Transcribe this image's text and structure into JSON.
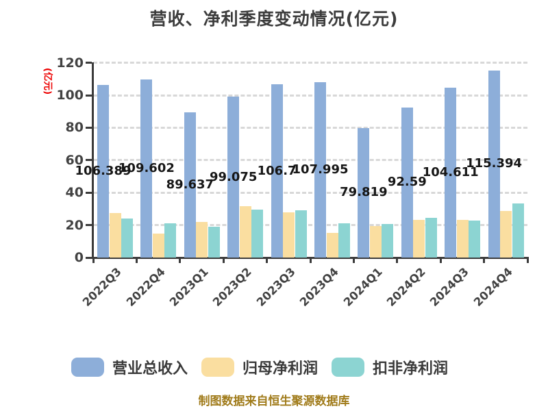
{
  "title": "营收、净利季度变动情况(亿元)",
  "y_axis_label": "(亿元)",
  "footer": "制图数据来自恒生聚源数据库",
  "colors": {
    "revenue_bar": "#8daed9",
    "net_profit_bar": "#fadea0",
    "deducted_profit_bar": "#8cd4d2",
    "title_text": "#3c3c3c",
    "axis": "#3b3b3b",
    "gridline": "#d8d8d8",
    "y_axis_label_text": "#ec0000",
    "value_label_text": "#161616",
    "footer_text": "#a07b1a"
  },
  "chart_data": {
    "type": "bar",
    "title": "营收、净利季度变动情况(亿元)",
    "ylabel": "(亿元)",
    "xlabel": "",
    "categories": [
      "2022Q3",
      "2022Q4",
      "2023Q1",
      "2023Q2",
      "2023Q3",
      "2023Q4",
      "2024Q1",
      "2024Q2",
      "2024Q3",
      "2024Q4"
    ],
    "series": [
      {
        "name": "营业总收入",
        "color": "#8daed9",
        "values": [
          106.389,
          109.602,
          89.637,
          99.075,
          106.7,
          107.995,
          79.819,
          92.59,
          104.611,
          115.394
        ],
        "value_labels": [
          "106.389",
          "109.602",
          "89.637",
          "99.075",
          "106.7",
          "107.995",
          "79.819",
          "92.59",
          "104.611",
          "115.394"
        ],
        "value_label_position": "center"
      },
      {
        "name": "归母净利润",
        "color": "#fadea0",
        "values": [
          27.5,
          14.6,
          21.8,
          31.6,
          27.9,
          15.4,
          19.6,
          23.3,
          23.3,
          28.9
        ]
      },
      {
        "name": "扣非净利润",
        "color": "#8cd4d2",
        "values": [
          24.1,
          21.3,
          19.1,
          29.5,
          29.2,
          21.1,
          20.8,
          24.5,
          22.9,
          33.4
        ]
      }
    ],
    "ylim": [
      0,
      120
    ],
    "y_ticks": [
      0,
      20,
      40,
      60,
      80,
      100,
      120
    ],
    "grid": "horizontal dashed",
    "x_tick_label_rotation": 45,
    "legend_position": "bottom",
    "source_note": "制图数据来自恒生聚源数据库"
  }
}
